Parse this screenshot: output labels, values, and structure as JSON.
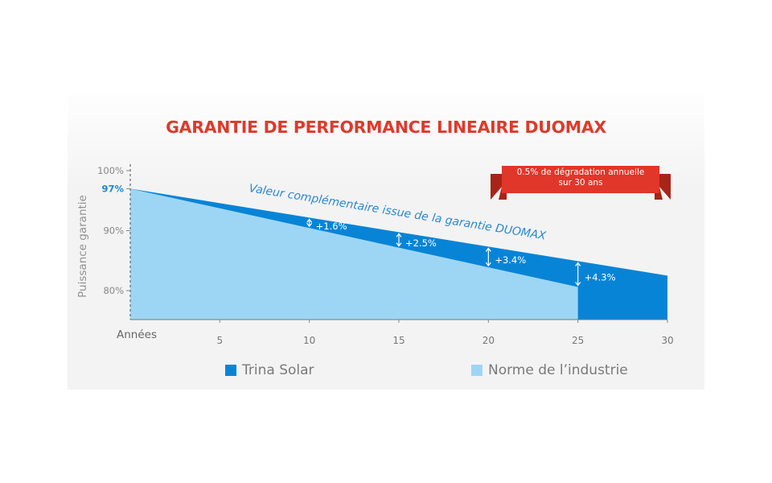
{
  "colors": {
    "trina": "#0884d6",
    "industry": "#9dd6f5",
    "accent_red": "#dc3b2c",
    "axis_text": "#888888",
    "label_97": "#1a8ad4",
    "annotation_blue": "#2a88d0"
  },
  "chart_data": {
    "type": "area",
    "title": "GARANTIE DE PERFORMANCE LINEAIRE DUOMAX",
    "ylabel": "Puissance garantie",
    "xlabel": "Années",
    "x_ticks": [
      5,
      10,
      15,
      20,
      25,
      30
    ],
    "y_ticks": [
      {
        "value": 100,
        "label": "100%"
      },
      {
        "value": 97,
        "label": "97%"
      },
      {
        "value": 90,
        "label": "90%"
      },
      {
        "value": 80,
        "label": "80%"
      }
    ],
    "xlim": [
      0,
      30
    ],
    "ylim": [
      75,
      100
    ],
    "series": [
      {
        "name": "Trina Solar",
        "x": [
          0,
          30
        ],
        "y": [
          97,
          82.5
        ]
      },
      {
        "name": "Norme de l’industrie",
        "x": [
          0,
          25
        ],
        "y": [
          97,
          80.6
        ]
      }
    ],
    "annotations": [
      {
        "x": 10,
        "label": "+1.6%"
      },
      {
        "x": 15,
        "label": "+2.5%"
      },
      {
        "x": 20,
        "label": "+3.4%"
      },
      {
        "x": 25,
        "label": "+4.3%"
      }
    ],
    "curve_label": "Valeur complémentaire issue de la garantie DUOMAX",
    "badge": {
      "line1": "0.5% de dégradation annuelle",
      "line2": "sur 30 ans"
    }
  }
}
